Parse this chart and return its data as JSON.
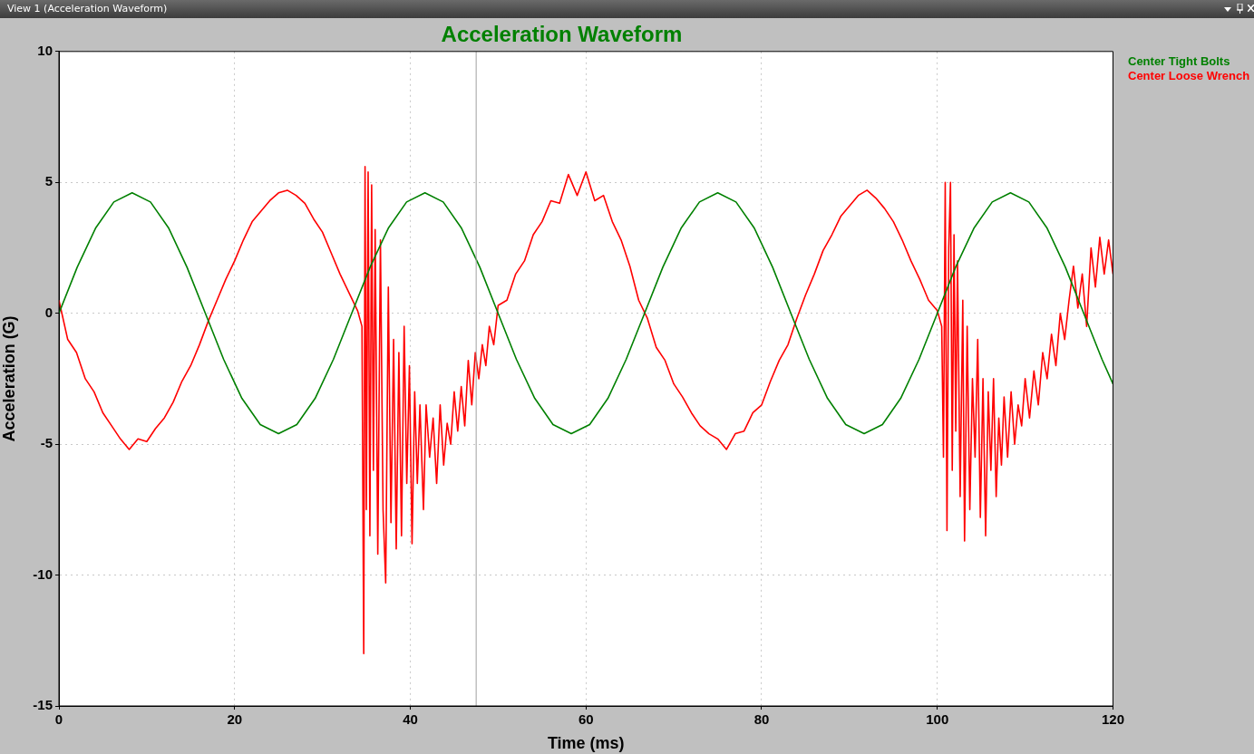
{
  "chart_data": {
    "type": "line",
    "title": "Acceleration Waveform",
    "xlabel": "Time (ms)",
    "ylabel": "Acceleration (G)",
    "annotations": [
      "View 1 (Acceleration Waveform)"
    ],
    "xlim": [
      0,
      120
    ],
    "xticks": [
      0,
      20,
      40,
      60,
      80,
      100,
      120
    ],
    "ylim": [
      -15,
      10
    ],
    "yticks": [
      -15,
      -10,
      -5,
      0,
      5,
      10
    ],
    "grid": true,
    "legend": "top right",
    "marker": "none",
    "line_style": "solid",
    "ref_lines": [
      {
        "axis": "x",
        "value": 47.5,
        "color": "#a0a0a0"
      }
    ],
    "series": [
      {
        "name": "Center Tight Bolts",
        "color": "#008000",
        "x": [
          0,
          2.08,
          4.17,
          6.25,
          8.33,
          10.42,
          12.5,
          14.58,
          16.67,
          18.75,
          20.83,
          22.92,
          25,
          27.08,
          29.17,
          31.25,
          33.33,
          35.42,
          37.5,
          39.58,
          41.67,
          43.75,
          45.83,
          47.92,
          50,
          52.08,
          54.17,
          56.25,
          58.33,
          60.42,
          62.5,
          64.58,
          66.67,
          68.75,
          70.83,
          72.92,
          75,
          77.08,
          79.17,
          81.25,
          83.33,
          85.42,
          87.5,
          89.58,
          91.67,
          93.75,
          95.83,
          97.92,
          100,
          102.08,
          104.17,
          106.25,
          108.33,
          110.42,
          112.5,
          114.58,
          116.67,
          118.75,
          120
        ],
        "values": [
          0,
          1.76,
          3.25,
          4.25,
          4.6,
          4.25,
          3.25,
          1.76,
          0,
          -1.76,
          -3.25,
          -4.25,
          -4.6,
          -4.25,
          -3.25,
          -1.76,
          0,
          1.76,
          3.25,
          4.25,
          4.6,
          4.25,
          3.25,
          1.76,
          0,
          -1.76,
          -3.25,
          -4.25,
          -4.6,
          -4.25,
          -3.25,
          -1.76,
          0,
          1.76,
          3.25,
          4.25,
          4.6,
          4.25,
          3.25,
          1.76,
          0,
          -1.76,
          -3.25,
          -4.25,
          -4.6,
          -4.25,
          -3.25,
          -1.76,
          0,
          1.76,
          3.25,
          4.25,
          4.6,
          4.25,
          3.25,
          1.76,
          0,
          -1.76,
          -2.7
        ]
      },
      {
        "name": "Center Loose Wrench",
        "color": "#ff0000",
        "x": [
          0,
          1,
          2,
          3,
          4,
          5,
          6,
          7,
          8,
          9,
          10,
          11,
          12,
          13,
          14,
          15,
          16,
          17,
          18,
          19,
          20,
          21,
          22,
          23,
          24,
          25,
          26,
          27,
          28,
          29,
          30,
          31,
          32,
          33,
          34,
          34.5,
          34.7,
          34.85,
          35,
          35.2,
          35.4,
          35.6,
          35.8,
          36,
          36.3,
          36.6,
          36.9,
          37.2,
          37.5,
          37.8,
          38.1,
          38.4,
          38.7,
          39,
          39.3,
          39.6,
          39.9,
          40.2,
          40.5,
          40.8,
          41.1,
          41.5,
          41.8,
          42.2,
          42.6,
          43,
          43.4,
          43.8,
          44.2,
          44.6,
          45,
          45.4,
          45.8,
          46.2,
          46.6,
          47,
          47.4,
          47.8,
          48.2,
          48.6,
          49,
          49.5,
          50,
          51,
          52,
          53,
          54,
          55,
          56,
          57,
          58,
          59,
          60,
          61,
          62,
          63,
          64,
          65,
          66,
          67,
          68,
          69,
          70,
          71,
          72,
          73,
          74,
          75,
          76,
          77,
          78,
          79,
          80,
          81,
          82,
          83,
          84,
          85,
          86,
          87,
          88,
          89,
          90,
          91,
          92,
          93,
          94,
          95,
          96,
          97,
          98,
          99,
          100,
          100.5,
          100.7,
          100.9,
          101.1,
          101.3,
          101.5,
          101.7,
          101.9,
          102.1,
          102.3,
          102.6,
          102.9,
          103.1,
          103.4,
          103.7,
          104,
          104.3,
          104.6,
          104.9,
          105.2,
          105.5,
          105.8,
          106.1,
          106.4,
          106.7,
          107,
          107.3,
          107.6,
          108,
          108.4,
          108.8,
          109.2,
          109.6,
          110,
          110.5,
          111,
          111.5,
          112,
          112.5,
          113,
          113.5,
          114,
          114.5,
          115,
          115.5,
          116,
          116.5,
          117,
          117.5,
          118,
          118.5,
          119,
          119.5,
          120
        ],
        "values": [
          0.5,
          -1,
          -1.5,
          -2.5,
          -3,
          -3.8,
          -4.3,
          -4.8,
          -5.2,
          -4.8,
          -4.9,
          -4.4,
          -4,
          -3.4,
          -2.6,
          -2,
          -1.2,
          -0.3,
          0.5,
          1.3,
          2,
          2.8,
          3.5,
          3.9,
          4.3,
          4.6,
          4.7,
          4.5,
          4.2,
          3.6,
          3.1,
          2.3,
          1.5,
          0.8,
          0.1,
          -0.5,
          -13,
          5.6,
          -7.5,
          5.4,
          -8.5,
          4.9,
          -6,
          3.2,
          -9.2,
          2.8,
          -7.5,
          -10.3,
          1,
          -8,
          -1,
          -9,
          -1.5,
          -8.5,
          -0.5,
          -6.5,
          -2,
          -8.8,
          -3,
          -6.5,
          -3.5,
          -7.5,
          -3.5,
          -5.5,
          -4,
          -6.5,
          -3.5,
          -5.8,
          -4.2,
          -5,
          -3,
          -4.5,
          -2.8,
          -4.3,
          -1.8,
          -3.5,
          -1.5,
          -2.5,
          -1.2,
          -2,
          -0.5,
          -1.2,
          0.3,
          0.5,
          1.5,
          2,
          3,
          3.5,
          4.3,
          4.2,
          5.3,
          4.5,
          5.4,
          4.3,
          4.5,
          3.5,
          2.8,
          1.8,
          0.5,
          -0.2,
          -1.3,
          -1.8,
          -2.7,
          -3.2,
          -3.8,
          -4.3,
          -4.6,
          -4.8,
          -5.2,
          -4.6,
          -4.5,
          -3.8,
          -3.5,
          -2.6,
          -1.8,
          -1.2,
          -0.2,
          0.7,
          1.5,
          2.4,
          3,
          3.7,
          4.1,
          4.5,
          4.7,
          4.4,
          4,
          3.5,
          2.8,
          2,
          1.3,
          0.5,
          0.1,
          -0.5,
          -5.5,
          5,
          -8.3,
          2.5,
          5,
          -6,
          3,
          -4.5,
          2,
          -7,
          0.5,
          -8.7,
          -0.5,
          -7.5,
          -2.5,
          -5.5,
          -1,
          -7.8,
          -2.5,
          -8.5,
          -3,
          -6,
          -2.5,
          -7,
          -4,
          -5.8,
          -3.2,
          -5.5,
          -3,
          -5,
          -3.5,
          -4.3,
          -2.5,
          -4,
          -2.2,
          -3.5,
          -1.5,
          -2.5,
          -0.8,
          -2,
          0,
          -1,
          0.5,
          1.8,
          0.2,
          1.5,
          -0.5,
          2.5,
          1,
          2.9,
          1.5,
          2.8,
          1.5
        ]
      }
    ]
  }
}
